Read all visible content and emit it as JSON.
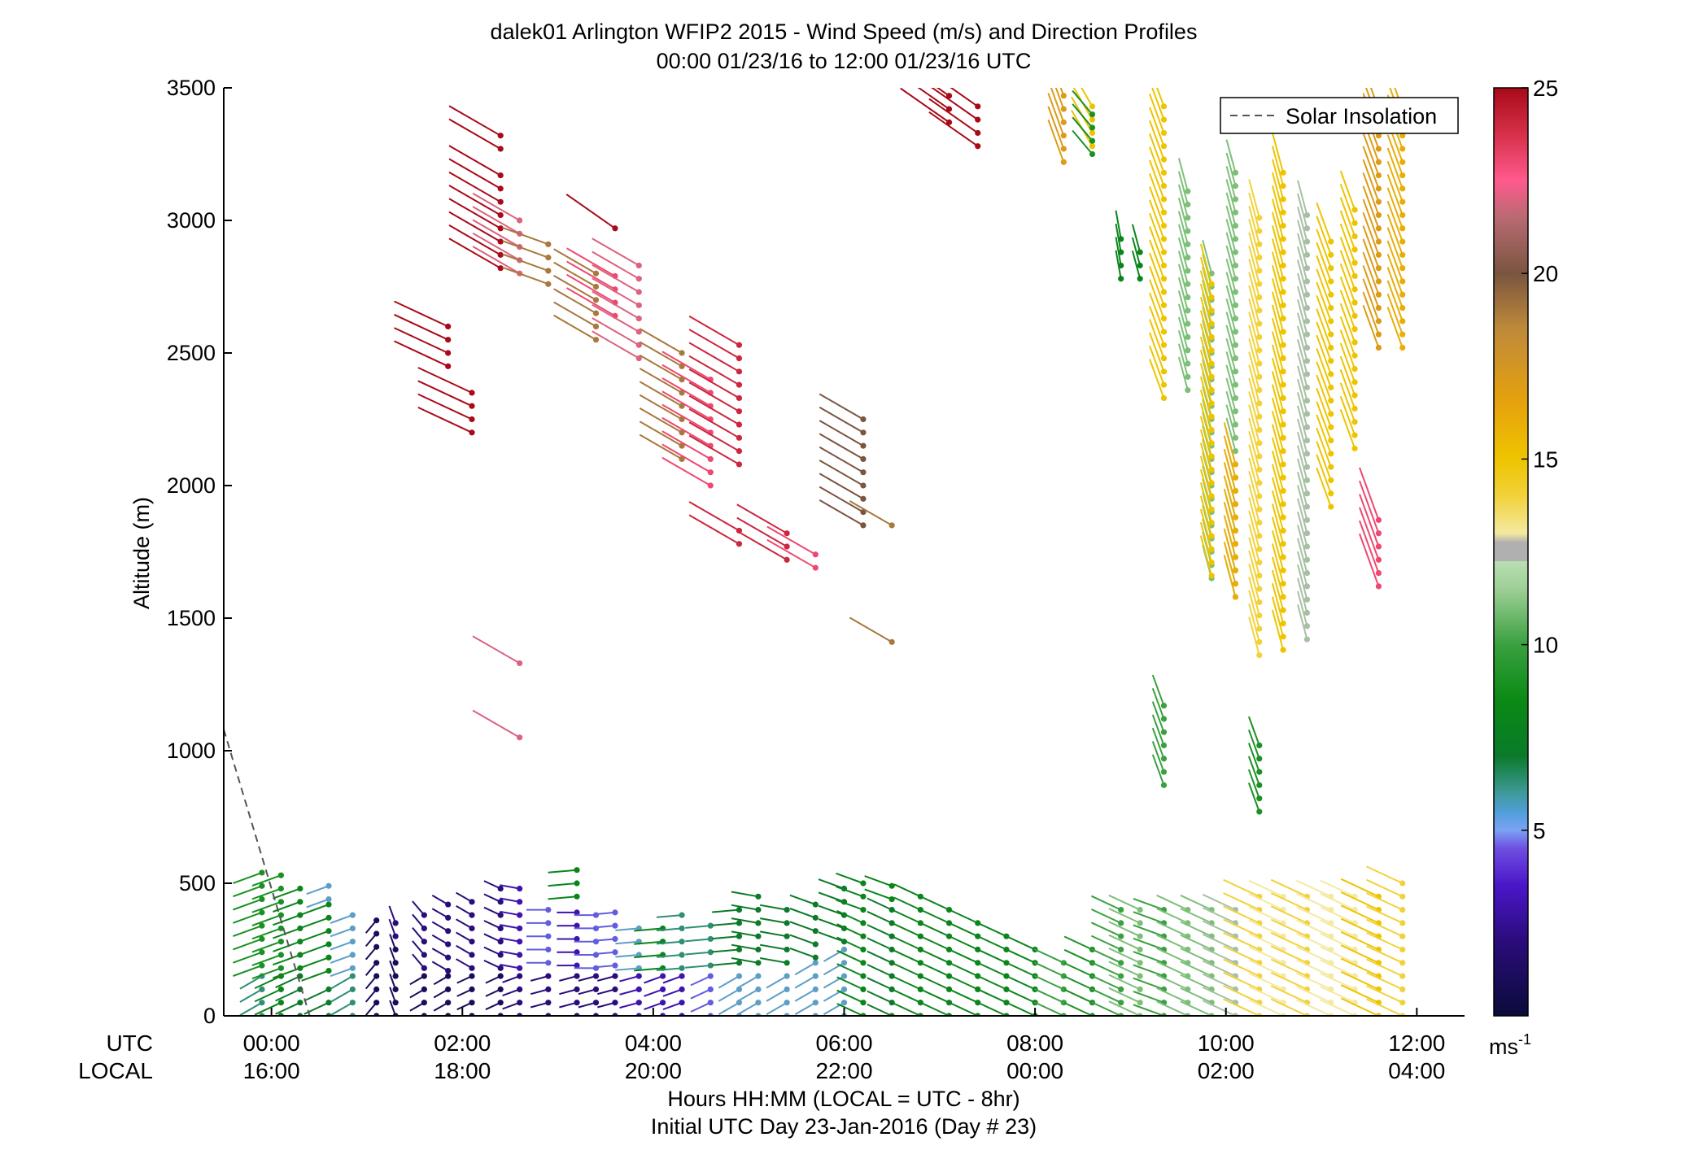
{
  "chart_data": {
    "type": "scatter",
    "subtype": "wind-barb profile (speed-colored sticks)",
    "title": "dalek01 Arlington WFIP2 2015 - Wind Speed (m/s) and Direction Profiles",
    "subtitle": "00:00 01/23/16 to 12:00 01/23/16  UTC",
    "ylabel": "Altitude (m)",
    "xlabel": "Hours HH:MM  (LOCAL = UTC - 8hr)",
    "xlabel2": "Initial UTC Day 23-Jan-2016 (Day # 23)",
    "row_label_utc": "UTC",
    "row_label_local": "LOCAL",
    "x_ticks_utc": [
      "00:00",
      "02:00",
      "04:00",
      "06:00",
      "08:00",
      "10:00",
      "12:00"
    ],
    "x_ticks_local": [
      "16:00",
      "18:00",
      "20:00",
      "22:00",
      "00:00",
      "02:00",
      "04:00"
    ],
    "x_tick_hours": [
      0,
      2,
      4,
      6,
      8,
      10,
      12
    ],
    "xlim_hours": [
      -0.5,
      12.5
    ],
    "y_ticks": [
      "0",
      "500",
      "1000",
      "1500",
      "2000",
      "2500",
      "3000",
      "3500"
    ],
    "ylim": [
      0,
      3500
    ],
    "colorbar": {
      "ticks": [
        "5",
        "10",
        "15",
        "20",
        "25"
      ],
      "tick_values": [
        5,
        10,
        15,
        20,
        25
      ],
      "range": [
        0,
        25
      ],
      "unit_label": "ms",
      "unit_exp": "-1"
    },
    "legend": {
      "label": "Solar Insolation",
      "position": "top-right"
    },
    "solar_insolation_line": [
      [
        -0.5,
        1080
      ],
      [
        0.4,
        0
      ]
    ],
    "colors": {
      "axis": "#000000",
      "solar_line": "#555555"
    },
    "profiles": [
      {
        "t": -0.1,
        "segs": [
          [
            0,
            170,
            6,
            300
          ],
          [
            190,
            560,
            9,
            290
          ]
        ]
      },
      {
        "t": 0.1,
        "segs": [
          [
            0,
            160,
            8,
            295
          ],
          [
            180,
            560,
            9,
            290
          ]
        ]
      },
      {
        "t": 0.3,
        "segs": [
          [
            0,
            150,
            7,
            295
          ],
          [
            180,
            520,
            8,
            290
          ]
        ]
      },
      {
        "t": 0.6,
        "segs": [
          [
            0,
            140,
            7,
            295
          ],
          [
            170,
            430,
            8,
            290
          ],
          [
            440,
            520,
            5,
            290
          ]
        ]
      },
      {
        "t": 0.85,
        "segs": [
          [
            0,
            160,
            6,
            300
          ],
          [
            180,
            420,
            5,
            290
          ]
        ]
      },
      {
        "t": 1.1,
        "segs": [
          [
            0,
            240,
            1,
            320
          ],
          [
            260,
            360,
            1,
            320
          ]
        ]
      },
      {
        "t": 1.3,
        "segs": [
          [
            0,
            280,
            1,
            200
          ],
          [
            300,
            390,
            2,
            200
          ]
        ]
      },
      {
        "t": 1.6,
        "segs": [
          [
            0,
            160,
            1,
            300
          ],
          [
            180,
            390,
            2,
            220
          ]
        ]
      },
      {
        "t": 1.85,
        "segs": [
          [
            0,
            150,
            1,
            300
          ],
          [
            170,
            420,
            2,
            240
          ],
          [
            2450,
            2600,
            25,
            245
          ]
        ]
      },
      {
        "t": 2.1,
        "segs": [
          [
            0,
            160,
            1,
            295
          ],
          [
            180,
            450,
            2,
            240
          ],
          [
            2200,
            2370,
            25,
            245
          ]
        ]
      },
      {
        "t": 2.4,
        "segs": [
          [
            0,
            160,
            1,
            295
          ],
          [
            180,
            480,
            2,
            245
          ],
          [
            3270,
            3320,
            25,
            240
          ],
          [
            2820,
            3180,
            25,
            240
          ]
        ]
      },
      {
        "t": 2.6,
        "segs": [
          [
            0,
            160,
            2,
            290
          ],
          [
            180,
            500,
            3,
            260
          ],
          [
            2800,
            3000,
            22,
            240
          ],
          [
            1330,
            1330,
            22,
            240
          ],
          [
            1050,
            1050,
            22,
            240
          ]
        ]
      },
      {
        "t": 2.9,
        "segs": [
          [
            0,
            180,
            2,
            285
          ],
          [
            200,
            420,
            4,
            270
          ],
          [
            2760,
            2920,
            19,
            250
          ]
        ]
      },
      {
        "t": 3.2,
        "segs": [
          [
            0,
            170,
            2,
            285
          ],
          [
            190,
            410,
            3,
            270
          ],
          [
            450,
            560,
            8,
            275
          ]
        ]
      },
      {
        "t": 3.4,
        "segs": [
          [
            0,
            160,
            2,
            285
          ],
          [
            180,
            400,
            4,
            270
          ],
          [
            2550,
            2830,
            19,
            240
          ]
        ]
      },
      {
        "t": 3.6,
        "segs": [
          [
            0,
            170,
            2,
            285
          ],
          [
            190,
            390,
            4,
            275
          ],
          [
            2640,
            2830,
            23,
            240
          ],
          [
            2970,
            2970,
            25,
            235
          ]
        ]
      },
      {
        "t": 3.85,
        "segs": [
          [
            0,
            160,
            3,
            285
          ],
          [
            180,
            360,
            5,
            275
          ],
          [
            2480,
            2830,
            22,
            240
          ]
        ]
      },
      {
        "t": 4.1,
        "segs": [
          [
            0,
            170,
            3,
            290
          ],
          [
            180,
            370,
            8,
            275
          ]
        ]
      },
      {
        "t": 4.3,
        "segs": [
          [
            0,
            170,
            3,
            290
          ],
          [
            180,
            400,
            6,
            275
          ],
          [
            2100,
            2540,
            19,
            240
          ]
        ]
      },
      {
        "t": 4.6,
        "segs": [
          [
            0,
            180,
            4,
            295
          ],
          [
            190,
            360,
            6,
            275
          ],
          [
            2000,
            2400,
            23,
            240
          ]
        ]
      },
      {
        "t": 4.9,
        "segs": [
          [
            0,
            180,
            5,
            300
          ],
          [
            200,
            420,
            7,
            275
          ],
          [
            2080,
            2550,
            24,
            240
          ],
          [
            1780,
            1870,
            24,
            240
          ]
        ]
      },
      {
        "t": 5.1,
        "segs": [
          [
            0,
            190,
            5,
            300
          ],
          [
            200,
            480,
            7,
            260
          ]
        ]
      },
      {
        "t": 5.4,
        "segs": [
          [
            0,
            190,
            5,
            300
          ],
          [
            200,
            430,
            7,
            260
          ],
          [
            1720,
            1820,
            24,
            240
          ]
        ]
      },
      {
        "t": 5.7,
        "segs": [
          [
            0,
            200,
            5,
            300
          ],
          [
            220,
            430,
            7,
            250
          ],
          [
            1690,
            1780,
            23,
            240
          ]
        ]
      },
      {
        "t": 6.0,
        "segs": [
          [
            0,
            260,
            5,
            300
          ],
          [
            280,
            490,
            7,
            250
          ]
        ]
      },
      {
        "t": 6.2,
        "segs": [
          [
            0,
            380,
            8,
            245
          ],
          [
            400,
            500,
            8,
            250
          ],
          [
            1850,
            2260,
            20,
            240
          ]
        ]
      },
      {
        "t": 6.5,
        "segs": [
          [
            0,
            420,
            7,
            245
          ],
          [
            440,
            490,
            8,
            250
          ],
          [
            1850,
            1870,
            19,
            240
          ],
          [
            1410,
            1410,
            19,
            240
          ]
        ]
      },
      {
        "t": 6.8,
        "segs": [
          [
            0,
            460,
            8,
            245
          ]
        ]
      },
      {
        "t": 7.1,
        "segs": [
          [
            0,
            430,
            8,
            245
          ],
          [
            3370,
            3470,
            25,
            235
          ]
        ]
      },
      {
        "t": 7.4,
        "segs": [
          [
            0,
            380,
            8,
            245
          ],
          [
            3280,
            3470,
            25,
            235
          ]
        ]
      },
      {
        "t": 7.7,
        "segs": [
          [
            0,
            320,
            8,
            245
          ]
        ]
      },
      {
        "t": 8.0,
        "segs": [
          [
            0,
            280,
            8,
            245
          ]
        ]
      },
      {
        "t": 8.3,
        "segs": [
          [
            0,
            240,
            10,
            245
          ],
          [
            3220,
            3470,
            17,
            200
          ]
        ]
      },
      {
        "t": 8.6,
        "segs": [
          [
            0,
            260,
            9,
            245
          ],
          [
            3280,
            3470,
            15,
            210
          ],
          [
            3250,
            3420,
            9,
            220
          ]
        ]
      },
      {
        "t": 8.9,
        "segs": [
          [
            0,
            420,
            10,
            245
          ],
          [
            2780,
            2930,
            8,
            190
          ]
        ]
      },
      {
        "t": 9.1,
        "segs": [
          [
            0,
            420,
            11,
            245
          ],
          [
            2780,
            2890,
            8,
            195
          ]
        ]
      },
      {
        "t": 9.35,
        "segs": [
          [
            0,
            440,
            10,
            250
          ],
          [
            2330,
            3470,
            15,
            200
          ],
          [
            870,
            1210,
            10,
            200
          ]
        ]
      },
      {
        "t": 9.6,
        "segs": [
          [
            0,
            430,
            11,
            245
          ],
          [
            2360,
            3140,
            11,
            195
          ]
        ]
      },
      {
        "t": 9.85,
        "segs": [
          [
            0,
            420,
            11,
            245
          ],
          [
            1650,
            2800,
            11,
            195
          ],
          [
            1660,
            2800,
            15,
            195
          ]
        ]
      },
      {
        "t": 10.1,
        "segs": [
          [
            0,
            440,
            12,
            245
          ],
          [
            1580,
            3210,
            11,
            195
          ],
          [
            1580,
            2100,
            16,
            195
          ]
        ]
      },
      {
        "t": 10.35,
        "segs": [
          [
            0,
            460,
            14,
            245
          ],
          [
            1360,
            3030,
            14,
            195
          ],
          [
            770,
            1050,
            9,
            200
          ]
        ]
      },
      {
        "t": 10.6,
        "segs": [
          [
            0,
            460,
            13,
            245
          ],
          [
            1380,
            3180,
            15,
            195
          ]
        ]
      },
      {
        "t": 10.85,
        "segs": [
          [
            0,
            460,
            14,
            245
          ],
          [
            1420,
            3030,
            12,
            195
          ]
        ]
      },
      {
        "t": 11.1,
        "segs": [
          [
            0,
            470,
            13,
            245
          ],
          [
            1920,
            2940,
            15,
            200
          ]
        ]
      },
      {
        "t": 11.35,
        "segs": [
          [
            0,
            480,
            13,
            245
          ],
          [
            2140,
            3080,
            15,
            200
          ]
        ]
      },
      {
        "t": 11.6,
        "segs": [
          [
            0,
            490,
            15,
            245
          ],
          [
            2520,
            3460,
            17,
            200
          ],
          [
            1620,
            1910,
            23,
            200
          ]
        ]
      },
      {
        "t": 11.85,
        "segs": [
          [
            0,
            520,
            14,
            245
          ],
          [
            2520,
            3460,
            16,
            200
          ]
        ]
      }
    ]
  }
}
